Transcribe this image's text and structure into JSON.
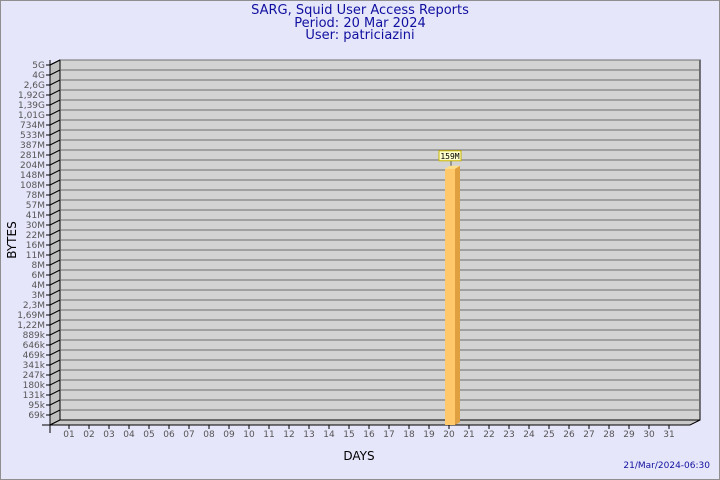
{
  "chart_data": {
    "type": "bar",
    "title": [
      "SARG, Squid User Access Reports",
      "Period: 20 Mar 2024",
      "User: patriciazini"
    ],
    "xlabel": "DAYS",
    "ylabel": "BYTES",
    "y_scale": "log",
    "y_ticks": [
      "5G",
      "4G",
      "2,6G",
      "1,92G",
      "1,39G",
      "1,01G",
      "734M",
      "533M",
      "387M",
      "281M",
      "204M",
      "148M",
      "108M",
      "78M",
      "57M",
      "41M",
      "30M",
      "22M",
      "16M",
      "11M",
      "8M",
      "6M",
      "4M",
      "3M",
      "2,3M",
      "1,69M",
      "1,22M",
      "889k",
      "646k",
      "469k",
      "341k",
      "247k",
      "180k",
      "131k",
      "95k",
      "69k"
    ],
    "categories": [
      "01",
      "02",
      "03",
      "04",
      "05",
      "06",
      "07",
      "08",
      "09",
      "10",
      "11",
      "12",
      "13",
      "14",
      "15",
      "16",
      "17",
      "18",
      "19",
      "20",
      "21",
      "22",
      "23",
      "24",
      "25",
      "26",
      "27",
      "28",
      "29",
      "30",
      "31"
    ],
    "values": [
      null,
      null,
      null,
      null,
      null,
      null,
      null,
      null,
      null,
      null,
      null,
      null,
      null,
      null,
      null,
      null,
      null,
      null,
      null,
      159000000,
      null,
      null,
      null,
      null,
      null,
      null,
      null,
      null,
      null,
      null,
      null
    ],
    "data_labels": {
      "20": "159M"
    },
    "grid": true,
    "colors": {
      "bar": "#ffc96b",
      "bar_side": "#e0a040",
      "wall": "#d3d3d3",
      "grid": "#6e6e6e",
      "title": "#1010a0"
    }
  },
  "footer": {
    "timestamp": "21/Mar/2024-06:30"
  }
}
